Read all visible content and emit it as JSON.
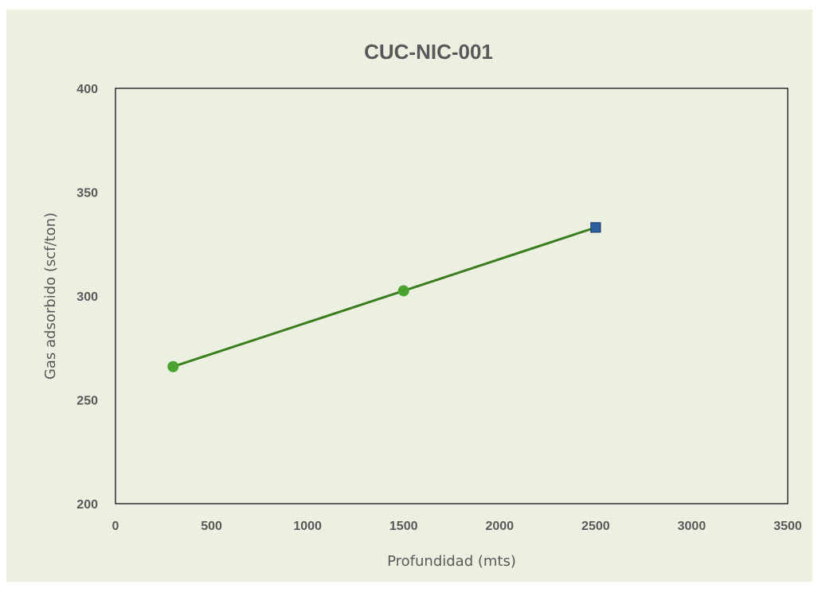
{
  "chart_data": {
    "type": "line",
    "title": "CUC-NIC-001",
    "xlabel": "Profundidad (mts)",
    "ylabel": "Gas adsorbido (scf/ton)",
    "xlim": [
      0,
      3500
    ],
    "ylim": [
      200,
      400
    ],
    "x_ticks": [
      "0",
      "500",
      "1000",
      "1500",
      "2000",
      "2500",
      "3000",
      "3500"
    ],
    "y_ticks": [
      "200",
      "250",
      "300",
      "350",
      "400"
    ],
    "grid": false,
    "series": [
      {
        "line_color": "#3a7d1e",
        "points": [
          {
            "x": 300,
            "y": 266,
            "marker": "circle",
            "color": "#4aa32e"
          },
          {
            "x": 1500,
            "y": 302.5,
            "marker": "circle",
            "color": "#4aa32e"
          },
          {
            "x": 2500,
            "y": 333,
            "marker": "square",
            "color": "#2e5fa1"
          }
        ]
      }
    ],
    "colors": {
      "background": "#ebf0e0",
      "text": "#595959",
      "axis": "#000000"
    }
  }
}
